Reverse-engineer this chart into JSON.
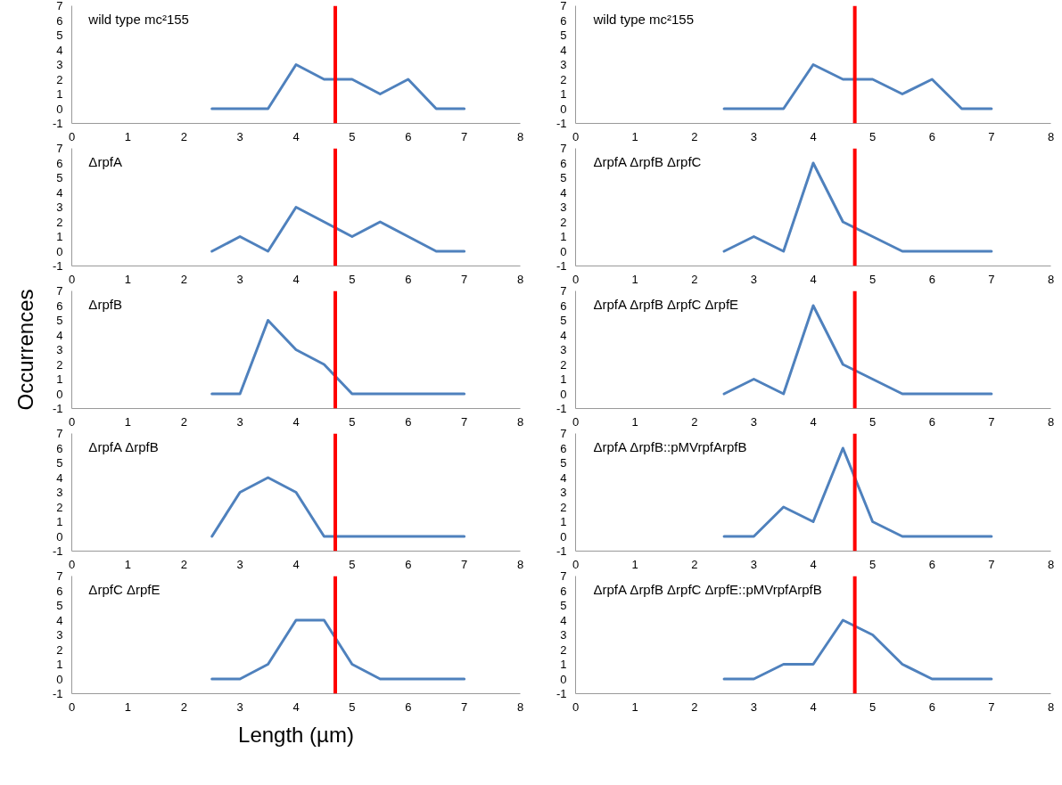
{
  "chart_data": [
    {
      "type": "line",
      "title": "wild type mc²155",
      "x": [
        2.5,
        3,
        3.5,
        4,
        4.5,
        5,
        5.5,
        6,
        6.5,
        7
      ],
      "series": [
        {
          "color": "#4f81bd",
          "values": [
            0,
            0,
            0,
            3,
            2,
            2,
            1,
            2,
            0,
            0
          ]
        }
      ],
      "xlim": [
        0,
        8
      ],
      "ylim": [
        -1,
        7
      ],
      "xticks": [
        0,
        1,
        2,
        3,
        4,
        5,
        6,
        7,
        8
      ],
      "yticks": [
        -1,
        0,
        1,
        2,
        3,
        4,
        5,
        6,
        7
      ],
      "ref_lines": [
        {
          "axis": "x",
          "value": 4.7,
          "color": "#ff0000"
        }
      ]
    },
    {
      "type": "line",
      "title": "wild type mc²155",
      "x": [
        2.5,
        3,
        3.5,
        4,
        4.5,
        5,
        5.5,
        6,
        6.5,
        7
      ],
      "series": [
        {
          "color": "#4f81bd",
          "values": [
            0,
            0,
            0,
            3,
            2,
            2,
            1,
            2,
            0,
            0
          ]
        }
      ],
      "xlim": [
        0,
        8
      ],
      "ylim": [
        -1,
        7
      ],
      "xticks": [
        0,
        1,
        2,
        3,
        4,
        5,
        6,
        7,
        8
      ],
      "yticks": [
        -1,
        0,
        1,
        2,
        3,
        4,
        5,
        6,
        7
      ],
      "ref_lines": [
        {
          "axis": "x",
          "value": 4.7,
          "color": "#ff0000"
        }
      ]
    },
    {
      "type": "line",
      "title": "ΔrpfA",
      "x": [
        2.5,
        3,
        3.5,
        4,
        4.5,
        5,
        5.5,
        6,
        6.5,
        7
      ],
      "series": [
        {
          "color": "#4f81bd",
          "values": [
            0,
            1,
            0,
            3,
            2,
            1,
            2,
            1,
            0,
            0
          ]
        }
      ],
      "xlim": [
        0,
        8
      ],
      "ylim": [
        -1,
        7
      ],
      "xticks": [
        0,
        1,
        2,
        3,
        4,
        5,
        6,
        7,
        8
      ],
      "yticks": [
        -1,
        0,
        1,
        2,
        3,
        4,
        5,
        6,
        7
      ],
      "ref_lines": [
        {
          "axis": "x",
          "value": 4.7,
          "color": "#ff0000"
        }
      ]
    },
    {
      "type": "line",
      "title": "ΔrpfA ΔrpfB ΔrpfC",
      "x": [
        2.5,
        3,
        3.5,
        4,
        4.5,
        5,
        5.5,
        6,
        6.5,
        7
      ],
      "series": [
        {
          "color": "#4f81bd",
          "values": [
            0,
            1,
            0,
            6,
            2,
            1,
            0,
            0,
            0,
            0
          ]
        }
      ],
      "xlim": [
        0,
        8
      ],
      "ylim": [
        -1,
        7
      ],
      "xticks": [
        0,
        1,
        2,
        3,
        4,
        5,
        6,
        7,
        8
      ],
      "yticks": [
        -1,
        0,
        1,
        2,
        3,
        4,
        5,
        6,
        7
      ],
      "ref_lines": [
        {
          "axis": "x",
          "value": 4.7,
          "color": "#ff0000"
        }
      ]
    },
    {
      "type": "line",
      "title": "ΔrpfB",
      "ylabel": "Occurrences",
      "x": [
        2.5,
        3,
        3.5,
        4,
        4.5,
        5,
        5.5,
        6,
        6.5,
        7
      ],
      "series": [
        {
          "color": "#4f81bd",
          "values": [
            0,
            0,
            5,
            3,
            2,
            0,
            0,
            0,
            0,
            0
          ]
        }
      ],
      "xlim": [
        0,
        8
      ],
      "ylim": [
        -1,
        7
      ],
      "xticks": [
        0,
        1,
        2,
        3,
        4,
        5,
        6,
        7,
        8
      ],
      "yticks": [
        -1,
        0,
        1,
        2,
        3,
        4,
        5,
        6,
        7
      ],
      "ref_lines": [
        {
          "axis": "x",
          "value": 4.7,
          "color": "#ff0000"
        }
      ]
    },
    {
      "type": "line",
      "title": "ΔrpfA ΔrpfB ΔrpfC ΔrpfE",
      "x": [
        2.5,
        3,
        3.5,
        4,
        4.5,
        5,
        5.5,
        6,
        6.5,
        7
      ],
      "series": [
        {
          "color": "#4f81bd",
          "values": [
            0,
            1,
            0,
            6,
            2,
            1,
            0,
            0,
            0,
            0
          ]
        }
      ],
      "xlim": [
        0,
        8
      ],
      "ylim": [
        -1,
        7
      ],
      "xticks": [
        0,
        1,
        2,
        3,
        4,
        5,
        6,
        7,
        8
      ],
      "yticks": [
        -1,
        0,
        1,
        2,
        3,
        4,
        5,
        6,
        7
      ],
      "ref_lines": [
        {
          "axis": "x",
          "value": 4.7,
          "color": "#ff0000"
        }
      ]
    },
    {
      "type": "line",
      "title": "ΔrpfA ΔrpfB",
      "x": [
        2.5,
        3,
        3.5,
        4,
        4.5,
        5,
        5.5,
        6,
        6.5,
        7
      ],
      "series": [
        {
          "color": "#4f81bd",
          "values": [
            0,
            3,
            4,
            3,
            0,
            0,
            0,
            0,
            0,
            0
          ]
        }
      ],
      "xlim": [
        0,
        8
      ],
      "ylim": [
        -1,
        7
      ],
      "xticks": [
        0,
        1,
        2,
        3,
        4,
        5,
        6,
        7,
        8
      ],
      "yticks": [
        -1,
        0,
        1,
        2,
        3,
        4,
        5,
        6,
        7
      ],
      "ref_lines": [
        {
          "axis": "x",
          "value": 4.7,
          "color": "#ff0000"
        }
      ]
    },
    {
      "type": "line",
      "title": "ΔrpfA ΔrpfB::pMVrpfArpfB",
      "x": [
        2.5,
        3,
        3.5,
        4,
        4.5,
        5,
        5.5,
        6,
        6.5,
        7
      ],
      "series": [
        {
          "color": "#4f81bd",
          "values": [
            0,
            0,
            2,
            1,
            6,
            1,
            0,
            0,
            0,
            0
          ]
        }
      ],
      "xlim": [
        0,
        8
      ],
      "ylim": [
        -1,
        7
      ],
      "xticks": [
        0,
        1,
        2,
        3,
        4,
        5,
        6,
        7,
        8
      ],
      "yticks": [
        -1,
        0,
        1,
        2,
        3,
        4,
        5,
        6,
        7
      ],
      "ref_lines": [
        {
          "axis": "x",
          "value": 4.7,
          "color": "#ff0000"
        }
      ]
    },
    {
      "type": "line",
      "title": "ΔrpfC ΔrpfE",
      "xlabel": "Length (µm)",
      "x": [
        2.5,
        3,
        3.5,
        4,
        4.5,
        5,
        5.5,
        6,
        6.5,
        7
      ],
      "series": [
        {
          "color": "#4f81bd",
          "values": [
            0,
            0,
            1,
            4,
            4,
            1,
            0,
            0,
            0,
            0
          ]
        }
      ],
      "xlim": [
        0,
        8
      ],
      "ylim": [
        -1,
        7
      ],
      "xticks": [
        0,
        1,
        2,
        3,
        4,
        5,
        6,
        7,
        8
      ],
      "yticks": [
        -1,
        0,
        1,
        2,
        3,
        4,
        5,
        6,
        7
      ],
      "ref_lines": [
        {
          "axis": "x",
          "value": 4.7,
          "color": "#ff0000"
        }
      ]
    },
    {
      "type": "line",
      "title": "ΔrpfA ΔrpfB ΔrpfC ΔrpfE::pMVrpfArpfB",
      "x": [
        2.5,
        3,
        3.5,
        4,
        4.5,
        5,
        5.5,
        6,
        6.5,
        7
      ],
      "series": [
        {
          "color": "#4f81bd",
          "values": [
            0,
            0,
            1,
            1,
            4,
            3,
            1,
            0,
            0,
            0
          ]
        }
      ],
      "xlim": [
        0,
        8
      ],
      "ylim": [
        -1,
        7
      ],
      "xticks": [
        0,
        1,
        2,
        3,
        4,
        5,
        6,
        7,
        8
      ],
      "yticks": [
        -1,
        0,
        1,
        2,
        3,
        4,
        5,
        6,
        7
      ],
      "ref_lines": [
        {
          "axis": "x",
          "value": 4.7,
          "color": "#ff0000"
        }
      ]
    }
  ]
}
